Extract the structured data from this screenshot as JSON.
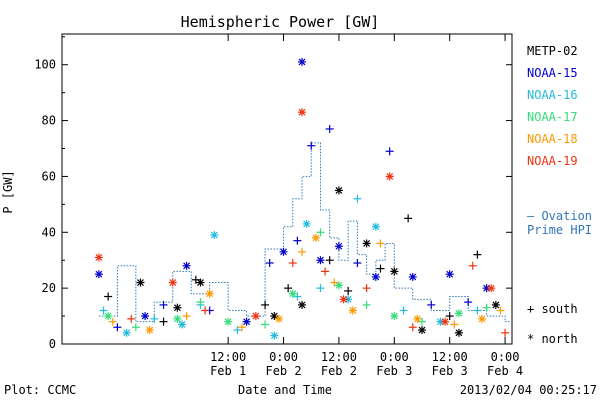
{
  "chart_data": {
    "type": "scatter",
    "title": "Hemispheric Power [GW]",
    "ylabel": "P [GW]",
    "xlabel": "Date and Time",
    "ylim": [
      0,
      111
    ],
    "xlim": [
      "2013-01-31 00:00",
      "2013-02-04 01:30"
    ],
    "y_ticks": [
      0,
      20,
      40,
      60,
      80,
      100
    ],
    "x_ticks": [
      {
        "x": "2013-02-01 12:00",
        "time": "12:00",
        "date": "Feb 1"
      },
      {
        "x": "2013-02-02 00:00",
        "time": "0:00",
        "date": "Feb 2"
      },
      {
        "x": "2013-02-02 12:00",
        "time": "12:00",
        "date": "Feb 2"
      },
      {
        "x": "2013-02-03 00:00",
        "time": "0:00",
        "date": "Feb 3"
      },
      {
        "x": "2013-02-03 12:00",
        "time": "12:00",
        "date": "Feb 3"
      },
      {
        "x": "2013-02-04 00:00",
        "time": "0:00",
        "date": "Feb 4"
      }
    ],
    "grid": false,
    "legend_position": "right",
    "series": [
      {
        "name": "METP-02",
        "color": "#000000",
        "marker": "mixed",
        "points": [
          [
            "2013-01-31 10:00",
            17
          ],
          [
            "2013-01-31 17:00",
            22
          ],
          [
            "2013-01-31 22:00",
            8
          ],
          [
            "2013-02-01 01:00",
            13
          ],
          [
            "2013-02-01 05:00",
            23
          ],
          [
            "2013-02-01 06:00",
            22
          ],
          [
            "2013-02-01 20:00",
            14
          ],
          [
            "2013-02-01 22:00",
            10
          ],
          [
            "2013-02-02 01:00",
            20
          ],
          [
            "2013-02-02 04:00",
            14
          ],
          [
            "2013-02-02 10:00",
            30
          ],
          [
            "2013-02-02 12:00",
            55
          ],
          [
            "2013-02-02 14:00",
            19
          ],
          [
            "2013-02-02 18:00",
            36
          ],
          [
            "2013-02-02 21:00",
            27
          ],
          [
            "2013-02-03 00:00",
            26
          ],
          [
            "2013-02-03 03:00",
            45
          ],
          [
            "2013-02-03 06:00",
            5
          ],
          [
            "2013-02-03 12:00",
            10
          ],
          [
            "2013-02-03 14:00",
            4
          ],
          [
            "2013-02-03 18:00",
            32
          ],
          [
            "2013-02-03 22:00",
            14
          ]
        ]
      },
      {
        "name": "NOAA-15",
        "color": "#0000cc",
        "marker": "mixed",
        "points": [
          [
            "2013-01-31 08:00",
            25
          ],
          [
            "2013-01-31 12:00",
            6
          ],
          [
            "2013-01-31 18:00",
            10
          ],
          [
            "2013-01-31 22:00",
            14
          ],
          [
            "2013-02-01 03:00",
            28
          ],
          [
            "2013-02-01 08:00",
            12
          ],
          [
            "2013-02-01 16:00",
            8
          ],
          [
            "2013-02-01 21:00",
            29
          ],
          [
            "2013-02-02 00:00",
            33
          ],
          [
            "2013-02-02 03:00",
            37
          ],
          [
            "2013-02-02 04:00",
            101
          ],
          [
            "2013-02-02 06:00",
            71
          ],
          [
            "2013-02-02 08:00",
            30
          ],
          [
            "2013-02-02 10:00",
            77
          ],
          [
            "2013-02-02 12:00",
            35
          ],
          [
            "2013-02-02 16:00",
            29
          ],
          [
            "2013-02-02 20:00",
            24
          ],
          [
            "2013-02-02 23:00",
            69
          ],
          [
            "2013-02-03 04:00",
            24
          ],
          [
            "2013-02-03 08:00",
            14
          ],
          [
            "2013-02-03 12:00",
            25
          ],
          [
            "2013-02-03 16:00",
            15
          ],
          [
            "2013-02-03 20:00",
            20
          ]
        ]
      },
      {
        "name": "NOAA-16",
        "color": "#22bbdd",
        "marker": "mixed",
        "points": [
          [
            "2013-01-31 09:00",
            12
          ],
          [
            "2013-01-31 14:00",
            4
          ],
          [
            "2013-01-31 20:00",
            9
          ],
          [
            "2013-02-01 02:00",
            7
          ],
          [
            "2013-02-01 06:00",
            14
          ],
          [
            "2013-02-01 09:00",
            39
          ],
          [
            "2013-02-01 14:00",
            5
          ],
          [
            "2013-02-01 22:00",
            3
          ],
          [
            "2013-02-02 03:00",
            17
          ],
          [
            "2013-02-02 05:00",
            43
          ],
          [
            "2013-02-02 08:00",
            20
          ],
          [
            "2013-02-02 14:00",
            16
          ],
          [
            "2013-02-02 16:00",
            52
          ],
          [
            "2013-02-02 20:00",
            42
          ],
          [
            "2013-02-03 02:00",
            12
          ],
          [
            "2013-02-03 10:00",
            8
          ],
          [
            "2013-02-03 18:00",
            12
          ]
        ]
      },
      {
        "name": "NOAA-17",
        "color": "#33dd77",
        "marker": "mixed",
        "points": [
          [
            "2013-01-31 10:00",
            10
          ],
          [
            "2013-01-31 16:00",
            6
          ],
          [
            "2013-02-01 01:00",
            9
          ],
          [
            "2013-02-01 06:00",
            15
          ],
          [
            "2013-02-01 12:00",
            8
          ],
          [
            "2013-02-01 20:00",
            7
          ],
          [
            "2013-02-02 02:00",
            18
          ],
          [
            "2013-02-02 08:00",
            40
          ],
          [
            "2013-02-02 12:00",
            21
          ],
          [
            "2013-02-02 18:00",
            14
          ],
          [
            "2013-02-03 00:00",
            10
          ],
          [
            "2013-02-03 06:00",
            8
          ],
          [
            "2013-02-03 14:00",
            11
          ],
          [
            "2013-02-03 20:00",
            13
          ]
        ]
      },
      {
        "name": "NOAA-18",
        "color": "#ff9900",
        "marker": "mixed",
        "points": [
          [
            "2013-01-31 11:00",
            8
          ],
          [
            "2013-01-31 19:00",
            5
          ],
          [
            "2013-02-01 03:00",
            10
          ],
          [
            "2013-02-01 08:00",
            18
          ],
          [
            "2013-02-01 15:00",
            6
          ],
          [
            "2013-02-01 23:00",
            9
          ],
          [
            "2013-02-02 04:00",
            33
          ],
          [
            "2013-02-02 07:00",
            38
          ],
          [
            "2013-02-02 11:00",
            22
          ],
          [
            "2013-02-02 15:00",
            12
          ],
          [
            "2013-02-02 21:00",
            36
          ],
          [
            "2013-02-03 05:00",
            9
          ],
          [
            "2013-02-03 13:00",
            7
          ],
          [
            "2013-02-03 19:00",
            9
          ],
          [
            "2013-02-03 23:00",
            12
          ]
        ]
      },
      {
        "name": "NOAA-19",
        "color": "#ee3311",
        "marker": "mixed",
        "points": [
          [
            "2013-01-31 08:00",
            31
          ],
          [
            "2013-01-31 15:00",
            9
          ],
          [
            "2013-02-01 00:00",
            22
          ],
          [
            "2013-02-01 07:00",
            12
          ],
          [
            "2013-02-01 18:00",
            10
          ],
          [
            "2013-02-02 02:00",
            29
          ],
          [
            "2013-02-02 04:00",
            83
          ],
          [
            "2013-02-02 09:00",
            26
          ],
          [
            "2013-02-02 13:00",
            16
          ],
          [
            "2013-02-02 18:00",
            20
          ],
          [
            "2013-02-02 23:00",
            60
          ],
          [
            "2013-02-03 04:00",
            6
          ],
          [
            "2013-02-03 11:00",
            8
          ],
          [
            "2013-02-03 17:00",
            28
          ],
          [
            "2013-02-03 21:00",
            20
          ],
          [
            "2013-02-04 00:00",
            4
          ]
        ]
      }
    ],
    "ovation": {
      "name": "Ovation Prime HPI",
      "legend_line1": "— Ovation",
      "legend_line2": "Prime HPI",
      "color": "#3377bb",
      "points": [
        [
          "2013-01-31 08:00",
          10
        ],
        [
          "2013-01-31 12:00",
          28
        ],
        [
          "2013-01-31 16:00",
          8
        ],
        [
          "2013-01-31 20:00",
          15
        ],
        [
          "2013-02-01 00:00",
          26
        ],
        [
          "2013-02-01 04:00",
          18
        ],
        [
          "2013-02-01 08:00",
          22
        ],
        [
          "2013-02-01 12:00",
          12
        ],
        [
          "2013-02-01 16:00",
          10
        ],
        [
          "2013-02-01 20:00",
          34
        ],
        [
          "2013-02-02 00:00",
          42
        ],
        [
          "2013-02-02 02:00",
          52
        ],
        [
          "2013-02-02 04:00",
          60
        ],
        [
          "2013-02-02 06:00",
          72
        ],
        [
          "2013-02-02 08:00",
          48
        ],
        [
          "2013-02-02 10:00",
          38
        ],
        [
          "2013-02-02 12:00",
          30
        ],
        [
          "2013-02-02 14:00",
          44
        ],
        [
          "2013-02-02 16:00",
          32
        ],
        [
          "2013-02-02 18:00",
          25
        ],
        [
          "2013-02-02 20:00",
          30
        ],
        [
          "2013-02-02 22:00",
          36
        ],
        [
          "2013-02-03 00:00",
          20
        ],
        [
          "2013-02-03 04:00",
          16
        ],
        [
          "2013-02-03 08:00",
          12
        ],
        [
          "2013-02-03 12:00",
          17
        ],
        [
          "2013-02-03 16:00",
          12
        ],
        [
          "2013-02-03 20:00",
          10
        ],
        [
          "2013-02-04 00:00",
          8
        ],
        [
          "2013-02-04 01:00",
          8
        ]
      ]
    },
    "marker_legend": {
      "plus": "+ south",
      "star": "* north"
    }
  },
  "footer": {
    "left": "Plot: CCMC",
    "right": "2013/02/04 00:25:17"
  }
}
